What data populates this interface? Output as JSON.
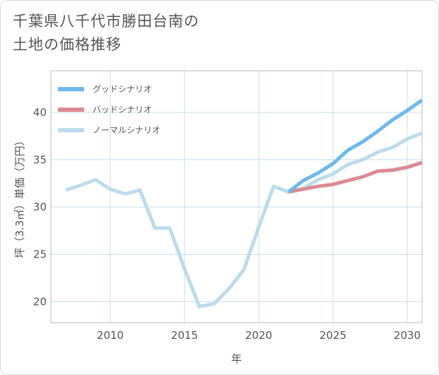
{
  "title_lines": [
    "千葉県八千代市勝田台南の",
    "土地の価格推移"
  ],
  "chart_data": {
    "type": "line",
    "title": "千葉県八千代市勝田台南の土地の価格推移",
    "xlabel": "年",
    "ylabel": "坪（3.3㎡）単価（万円）",
    "xlim": [
      2006,
      2031
    ],
    "ylim": [
      17.8,
      44.4
    ],
    "xticks": [
      2010,
      2015,
      2020,
      2025,
      2030
    ],
    "yticks": [
      20,
      25,
      30,
      35,
      40
    ],
    "grid": true,
    "legend_position": "top-left",
    "series": [
      {
        "name": "グッドシナリオ",
        "color": "#6cb9ec",
        "points": [
          [
            2022,
            31.6
          ],
          [
            2023,
            32.8
          ],
          [
            2024,
            33.6
          ],
          [
            2025,
            34.6
          ],
          [
            2026,
            36.0
          ],
          [
            2027,
            36.9
          ],
          [
            2028,
            38.0
          ],
          [
            2029,
            39.2
          ],
          [
            2030,
            40.2
          ],
          [
            2031,
            41.3
          ]
        ]
      },
      {
        "name": "バッドシナリオ",
        "color": "#dd8a92",
        "points": [
          [
            2022,
            31.6
          ],
          [
            2023,
            31.9
          ],
          [
            2024,
            32.2
          ],
          [
            2025,
            32.4
          ],
          [
            2026,
            32.8
          ],
          [
            2027,
            33.2
          ],
          [
            2028,
            33.8
          ],
          [
            2029,
            33.9
          ],
          [
            2030,
            34.2
          ],
          [
            2031,
            34.7
          ]
        ]
      },
      {
        "name": "ノーマルシナリオ",
        "color": "#bcdcec",
        "points": [
          [
            2007,
            31.8
          ],
          [
            2008,
            32.3
          ],
          [
            2009,
            32.9
          ],
          [
            2010,
            31.9
          ],
          [
            2011,
            31.4
          ],
          [
            2012,
            31.8
          ],
          [
            2013,
            27.8
          ],
          [
            2014,
            27.8
          ],
          [
            2015,
            23.5
          ],
          [
            2016,
            19.5
          ],
          [
            2017,
            19.8
          ],
          [
            2018,
            21.4
          ],
          [
            2019,
            23.4
          ],
          [
            2020,
            27.9
          ],
          [
            2021,
            32.2
          ],
          [
            2022,
            31.6
          ],
          [
            2023,
            32.0
          ],
          [
            2024,
            32.9
          ],
          [
            2025,
            33.5
          ],
          [
            2026,
            34.5
          ],
          [
            2027,
            35.0
          ],
          [
            2028,
            35.8
          ],
          [
            2029,
            36.3
          ],
          [
            2030,
            37.2
          ],
          [
            2031,
            37.8
          ]
        ]
      }
    ]
  }
}
